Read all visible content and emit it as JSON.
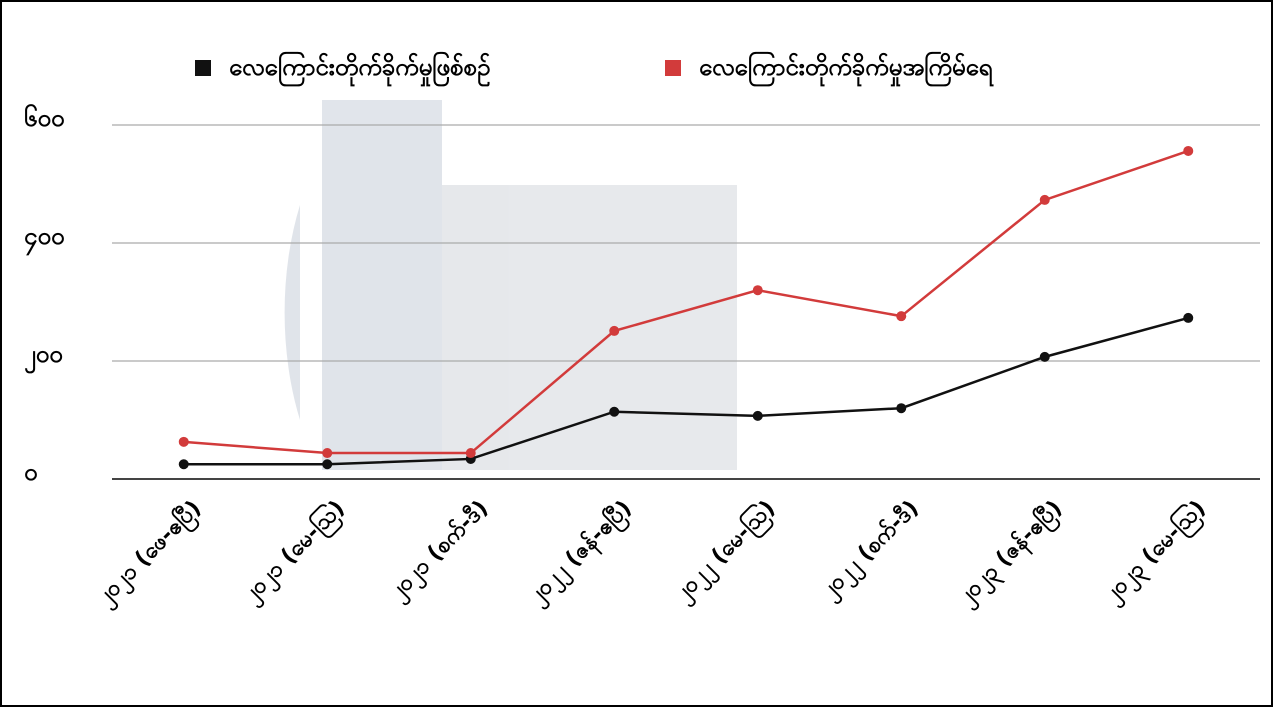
{
  "chart_data": {
    "type": "line",
    "categories": [
      "၂၀၂၁ (ဖေ-ဧပြီ)",
      "၂၀၂၁ (မေ-ဩ)",
      "၂၀၂၁ (စက်-ဒီ)",
      "၂၀၂၂ (ဇန်-ဧပြီ)",
      "၂၀၂၂ (မေ-ဩ)",
      "၂၀၂၂ (စက်-ဒီ)",
      "၂၀၂၃ (ဇန်-ဧပြီ)",
      "၂၀၂၃ (မေ-ဩ)"
    ],
    "series": [
      {
        "name": "လေကြောင်းတိုက်ခိုက်မှုဖြစ်စဉ်",
        "color": "#111111",
        "values": [
          25,
          25,
          34,
          114,
          107,
          120,
          207,
          273
        ]
      },
      {
        "name": "လေကြောင်းတိုက်ခိုက်မှုအကြိမ်ရေ",
        "color": "#d23b3b",
        "values": [
          63,
          44,
          44,
          251,
          320,
          276,
          473,
          556
        ]
      }
    ],
    "ylim": [
      0,
      600
    ],
    "yticks": [
      {
        "value": 0,
        "label": "၀"
      },
      {
        "value": 200,
        "label": "၂၀၀"
      },
      {
        "value": 400,
        "label": "၄၀၀"
      },
      {
        "value": 600,
        "label": "၆၀၀"
      }
    ],
    "grid": true,
    "legend": "top"
  }
}
